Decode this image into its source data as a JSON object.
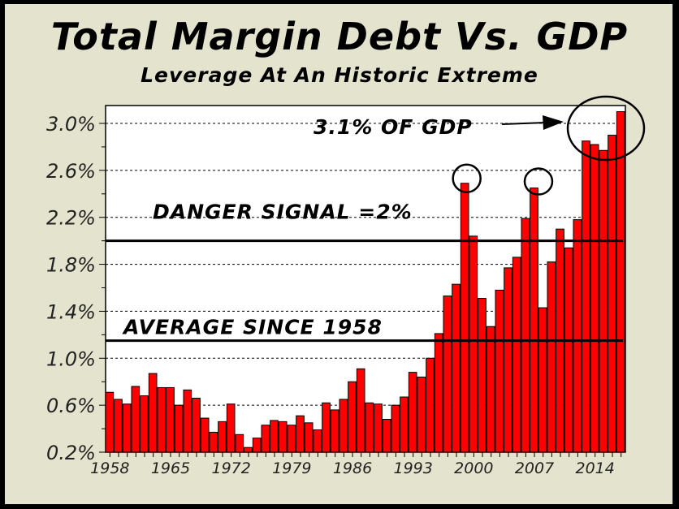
{
  "chart_data": {
    "type": "bar",
    "title": "Total Margin Debt Vs. GDP",
    "subtitle": "Leverage At An Historic Extreme",
    "xlabel": "",
    "ylabel": "",
    "ylim": [
      0.2,
      3.15
    ],
    "yticks": [
      0.2,
      0.6,
      1.0,
      1.4,
      1.8,
      2.2,
      2.6,
      3.0
    ],
    "ytick_labels": [
      "0.2%",
      "0.6%",
      "1.0%",
      "1.4%",
      "1.8%",
      "2.2%",
      "2.6%",
      "3.0%"
    ],
    "xtick_labels": [
      "1958",
      "1965",
      "1972",
      "1979",
      "1986",
      "1993",
      "2000",
      "2007",
      "2014"
    ],
    "grid": "dashed horizontal",
    "bar_color": "#ff0000",
    "years": [
      1958,
      1959,
      1960,
      1961,
      1962,
      1963,
      1964,
      1965,
      1966,
      1967,
      1968,
      1969,
      1970,
      1971,
      1972,
      1973,
      1974,
      1975,
      1976,
      1977,
      1978,
      1979,
      1980,
      1981,
      1982,
      1983,
      1984,
      1985,
      1986,
      1987,
      1988,
      1989,
      1990,
      1991,
      1992,
      1993,
      1994,
      1995,
      1996,
      1997,
      1998,
      1999,
      2000,
      2001,
      2002,
      2003,
      2004,
      2005,
      2006,
      2007,
      2008,
      2009,
      2010,
      2011,
      2012,
      2013,
      2014,
      2015,
      2016,
      2017
    ],
    "values": [
      0.71,
      0.65,
      0.61,
      0.76,
      0.68,
      0.87,
      0.75,
      0.75,
      0.6,
      0.73,
      0.66,
      0.49,
      0.37,
      0.46,
      0.61,
      0.35,
      0.24,
      0.32,
      0.43,
      0.47,
      0.46,
      0.43,
      0.51,
      0.45,
      0.39,
      0.62,
      0.56,
      0.65,
      0.8,
      0.91,
      0.62,
      0.61,
      0.48,
      0.6,
      0.67,
      0.88,
      0.84,
      1.0,
      1.21,
      1.53,
      1.63,
      2.49,
      2.04,
      1.51,
      1.27,
      1.58,
      1.77,
      1.86,
      2.19,
      2.45,
      1.43,
      1.82,
      2.1,
      1.94,
      2.18,
      2.85,
      2.82,
      2.77,
      2.9,
      3.1
    ],
    "reference_lines": [
      {
        "label": "DANGER SIGNAL =2%",
        "value": 2.0
      },
      {
        "label": "AVERAGE SINCE 1958",
        "value": 1.15
      }
    ],
    "annotations": [
      {
        "text": "3.1% OF GDP",
        "target_year": 2017
      }
    ],
    "highlighted_years": [
      1999,
      2007,
      2015
    ]
  }
}
